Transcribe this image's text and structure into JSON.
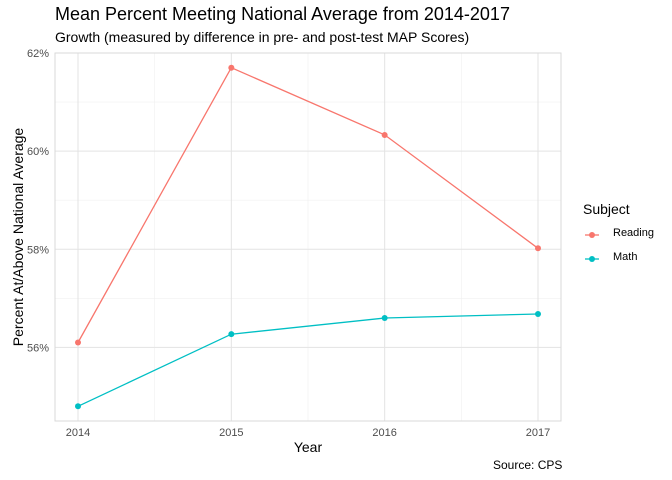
{
  "chart_data": {
    "type": "line",
    "title": "Mean Percent Meeting National Average from 2014-2017",
    "subtitle": "Growth (measured by difference in pre- and post-test MAP Scores)",
    "xlabel": "Year",
    "ylabel": "Percent At/Above National Average",
    "caption": "Source: CPS",
    "x": [
      2014,
      2015,
      2016,
      2017
    ],
    "x_tick_labels": [
      "2014",
      "2015",
      "2016",
      "2017"
    ],
    "y_ticks": [
      56,
      58,
      60,
      62
    ],
    "y_tick_labels": [
      "56%",
      "58%",
      "60%",
      "62%"
    ],
    "ylim": [
      54.5,
      62
    ],
    "grid": true,
    "legend": {
      "title": "Subject",
      "position": "right"
    },
    "series": [
      {
        "name": "Reading",
        "color": "#F8766D",
        "values": [
          56.1,
          61.7,
          60.33,
          58.02
        ]
      },
      {
        "name": "Math",
        "color": "#00BFC4",
        "values": [
          54.8,
          56.27,
          56.6,
          56.68
        ]
      }
    ]
  }
}
